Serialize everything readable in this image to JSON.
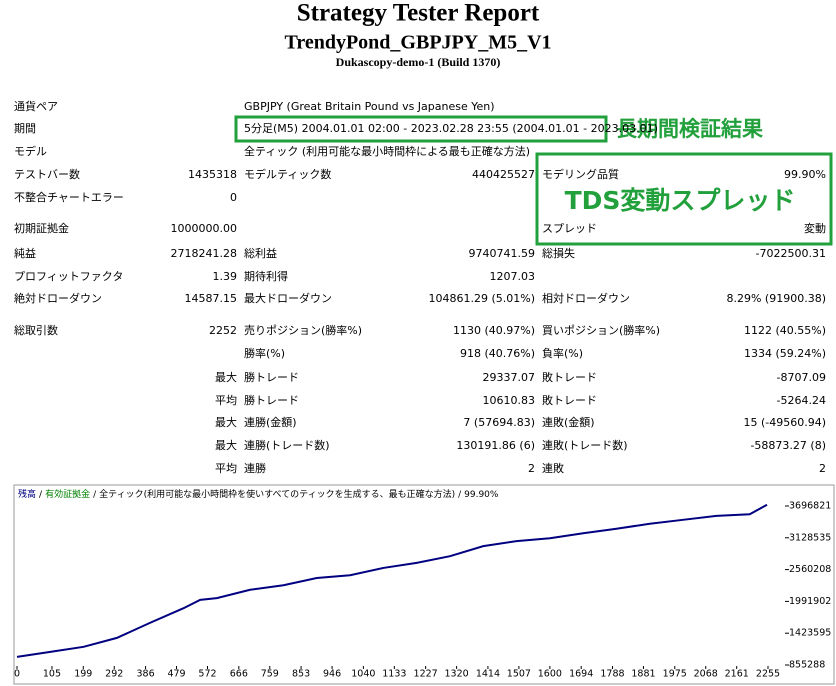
{
  "header": {
    "title": "Strategy Tester Report",
    "subtitle": "TrendyPond_GBPJPY_M5_V1",
    "server": "Dukascopy-demo-1 (Build 1370)"
  },
  "report": {
    "rows": [
      {
        "l1": "通貨ペア",
        "l2": "GBPJPY (Great Britain Pound vs Japanese Yen)"
      },
      {
        "l1": "期間",
        "l2": "5分足(M5) 2004.01.01 02:00 - 2023.02.28 23:55 (2004.01.01 - 2023.03.01)"
      },
      {
        "l1": "モデル",
        "l2": "全ティック (利用可能な最小時間枠による最も正確な方法)"
      },
      {
        "l1": "テストバー数",
        "v1": "1435318",
        "l2": "モデルティック数",
        "v2": "440425527",
        "l3": "モデリング品質",
        "v3": "99.90%"
      },
      {
        "l1": "不整合チャートエラー",
        "v1": "0"
      },
      {
        "l1": "初期証拠金",
        "v1": "1000000.00",
        "l3": "スプレッド",
        "v3": "変動"
      },
      {
        "l1": "純益",
        "v1": "2718241.28",
        "l2": "総利益",
        "v2": "9740741.59",
        "l3": "総損失",
        "v3": "-7022500.31"
      },
      {
        "l1": "プロフィットファクタ",
        "v1": "1.39",
        "l2": "期待利得",
        "v2": "1207.03"
      },
      {
        "l1": "絶対ドローダウン",
        "v1": "14587.15",
        "l2": "最大ドローダウン",
        "v2": "104861.29 (5.01%)",
        "l3": "相対ドローダウン",
        "v3": "8.29% (91900.38)"
      },
      {
        "l1": "総取引数",
        "v1": "2252",
        "l2": "売りポジション(勝率%)",
        "v2": "1130 (40.97%)",
        "l3": "買いポジション(勝率%)",
        "v3": "1122 (40.55%)"
      },
      {
        "l2": "勝率(%)",
        "v2": "918 (40.76%)",
        "l3": "負率(%)",
        "v3": "1334 (59.24%)"
      },
      {
        "v1": "最大",
        "l2": "勝トレード",
        "v2": "29337.07",
        "l3": "敗トレード",
        "v3": "-8707.09"
      },
      {
        "v1": "平均",
        "l2": "勝トレード",
        "v2": "10610.83",
        "l3": "敗トレード",
        "v3": "-5264.24"
      },
      {
        "v1": "最大",
        "l2": "連勝(金額)",
        "v2": "7 (57694.83)",
        "l3": "連敗(金額)",
        "v3": "15 (-49560.94)"
      },
      {
        "v1": "最大",
        "l2": "連勝(トレード数)",
        "v2": "130191.86 (6)",
        "l3": "連敗(トレード数)",
        "v3": "-58873.27 (8)"
      },
      {
        "v1": "平均",
        "l2": "連勝",
        "v2": "2",
        "l3": "連敗",
        "v3": "2"
      }
    ]
  },
  "annotations": {
    "period_note": "長期間検証結果",
    "spread_note": "TDS変動スプレッド"
  },
  "chart_data": {
    "type": "line",
    "legend_items": [
      "有効証拠金",
      "全ティック(利用可能な最小時間枠を使いすべてのティックを生成する、最も正確な方法)",
      "99.90%"
    ],
    "legend_separator": "/",
    "x": [
      0,
      100,
      200,
      300,
      400,
      500,
      550,
      600,
      700,
      800,
      900,
      1000,
      1100,
      1200,
      1300,
      1400,
      1500,
      1600,
      1700,
      1800,
      1900,
      2000,
      2100,
      2200,
      2252
    ],
    "series": [
      {
        "name": "残高",
        "color": "#000080",
        "values": [
          1000000,
          1090000,
          1180000,
          1340000,
          1610000,
          1870000,
          2020000,
          2050000,
          2200000,
          2280000,
          2410000,
          2460000,
          2590000,
          2680000,
          2800000,
          2980000,
          3070000,
          3120000,
          3210000,
          3290000,
          3380000,
          3450000,
          3520000,
          3550000,
          3718241
        ]
      }
    ],
    "xlim": [
      0,
      2300
    ],
    "ylim": [
      855288,
      3696821
    ],
    "xticks": [
      0,
      105,
      199,
      292,
      386,
      479,
      572,
      666,
      759,
      853,
      946,
      1040,
      1133,
      1227,
      1320,
      1414,
      1507,
      1600,
      1694,
      1788,
      1881,
      1975,
      2068,
      2161,
      2255
    ],
    "yticks": [
      855288,
      1423595,
      1991902,
      2560208,
      3128535,
      3696821
    ]
  }
}
